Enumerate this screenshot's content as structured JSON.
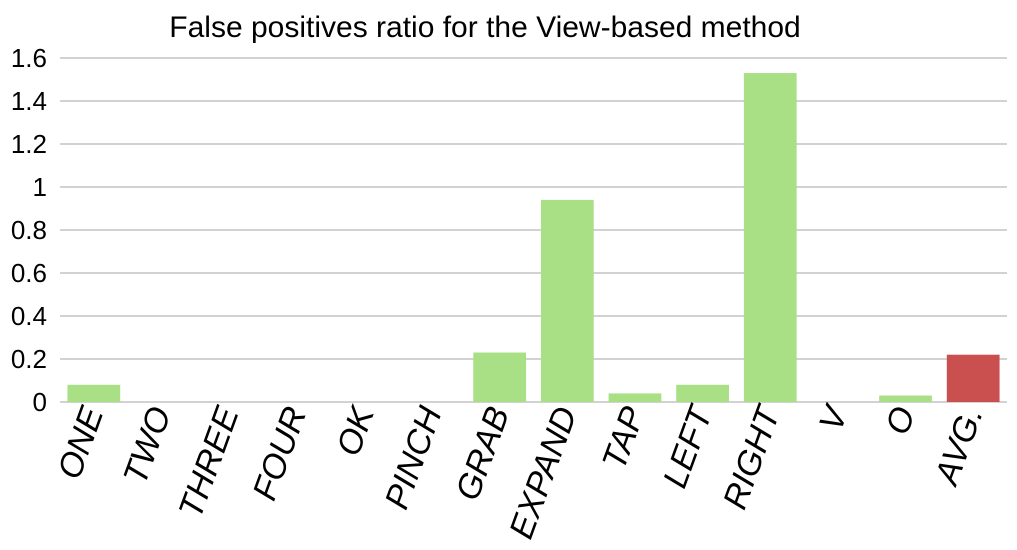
{
  "chart_data": {
    "type": "bar",
    "title": "False positives ratio for the View-based method",
    "xlabel": "",
    "ylabel": "",
    "categories": [
      "ONE",
      "TWO",
      "THREE",
      "FOUR",
      "OK",
      "PINCH",
      "GRAB",
      "EXPAND",
      "TAP",
      "LEFT",
      "RIGHT",
      "V",
      "O",
      "AVG."
    ],
    "values": [
      0.08,
      0,
      0,
      0,
      0,
      0,
      0.23,
      0.94,
      0.04,
      0.08,
      1.53,
      0,
      0.03,
      0.22
    ],
    "bar_colors": [
      "#a9df85",
      "#a9df85",
      "#a9df85",
      "#a9df85",
      "#a9df85",
      "#a9df85",
      "#a9df85",
      "#a9df85",
      "#a9df85",
      "#a9df85",
      "#a9df85",
      "#a9df85",
      "#a9df85",
      "#c9504f"
    ],
    "ylim": [
      0,
      1.6
    ],
    "yticks": [
      "0",
      "0.2",
      "0.4",
      "0.6",
      "0.8",
      "1",
      "1.2",
      "1.4",
      "1.6"
    ],
    "grid": true,
    "legend": "none"
  }
}
